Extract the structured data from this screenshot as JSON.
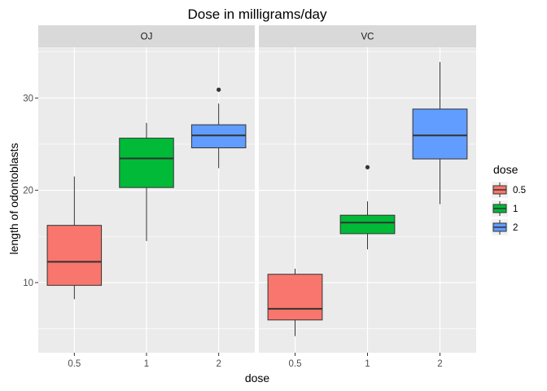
{
  "chart_data": {
    "type": "boxplot",
    "title": "Dose in milligrams/day",
    "xlabel": "dose",
    "ylabel": "length of odontoblasts",
    "categories": [
      "0.5",
      "1",
      "2"
    ],
    "ylim": [
      2.4,
      35.5
    ],
    "yticks": [
      10,
      20,
      30
    ],
    "grid": true,
    "legend": {
      "title": "dose",
      "position": "right",
      "entries": [
        {
          "label": "0.5",
          "color": "#F8766D"
        },
        {
          "label": "1",
          "color": "#00BA38"
        },
        {
          "label": "2",
          "color": "#619CFF"
        }
      ]
    },
    "facets": [
      {
        "label": "OJ",
        "boxes": [
          {
            "dose": "0.5",
            "lower_whisker": 8.2,
            "q1": 9.7,
            "median": 12.25,
            "q3": 16.2,
            "upper_whisker": 21.5,
            "outliers": []
          },
          {
            "dose": "1",
            "lower_whisker": 14.5,
            "q1": 20.3,
            "median": 23.45,
            "q3": 25.65,
            "upper_whisker": 27.3,
            "outliers": []
          },
          {
            "dose": "2",
            "lower_whisker": 22.4,
            "q1": 24.6,
            "median": 25.95,
            "q3": 27.1,
            "upper_whisker": 29.4,
            "outliers": [
              30.9
            ]
          }
        ]
      },
      {
        "label": "VC",
        "boxes": [
          {
            "dose": "0.5",
            "lower_whisker": 4.2,
            "q1": 5.95,
            "median": 7.15,
            "q3": 10.9,
            "upper_whisker": 11.5,
            "outliers": []
          },
          {
            "dose": "1",
            "lower_whisker": 13.6,
            "q1": 15.3,
            "median": 16.5,
            "q3": 17.3,
            "upper_whisker": 18.8,
            "outliers": [
              22.5
            ]
          },
          {
            "dose": "2",
            "lower_whisker": 18.5,
            "q1": 23.4,
            "median": 25.95,
            "q3": 28.8,
            "upper_whisker": 33.9,
            "outliers": []
          }
        ]
      }
    ]
  }
}
